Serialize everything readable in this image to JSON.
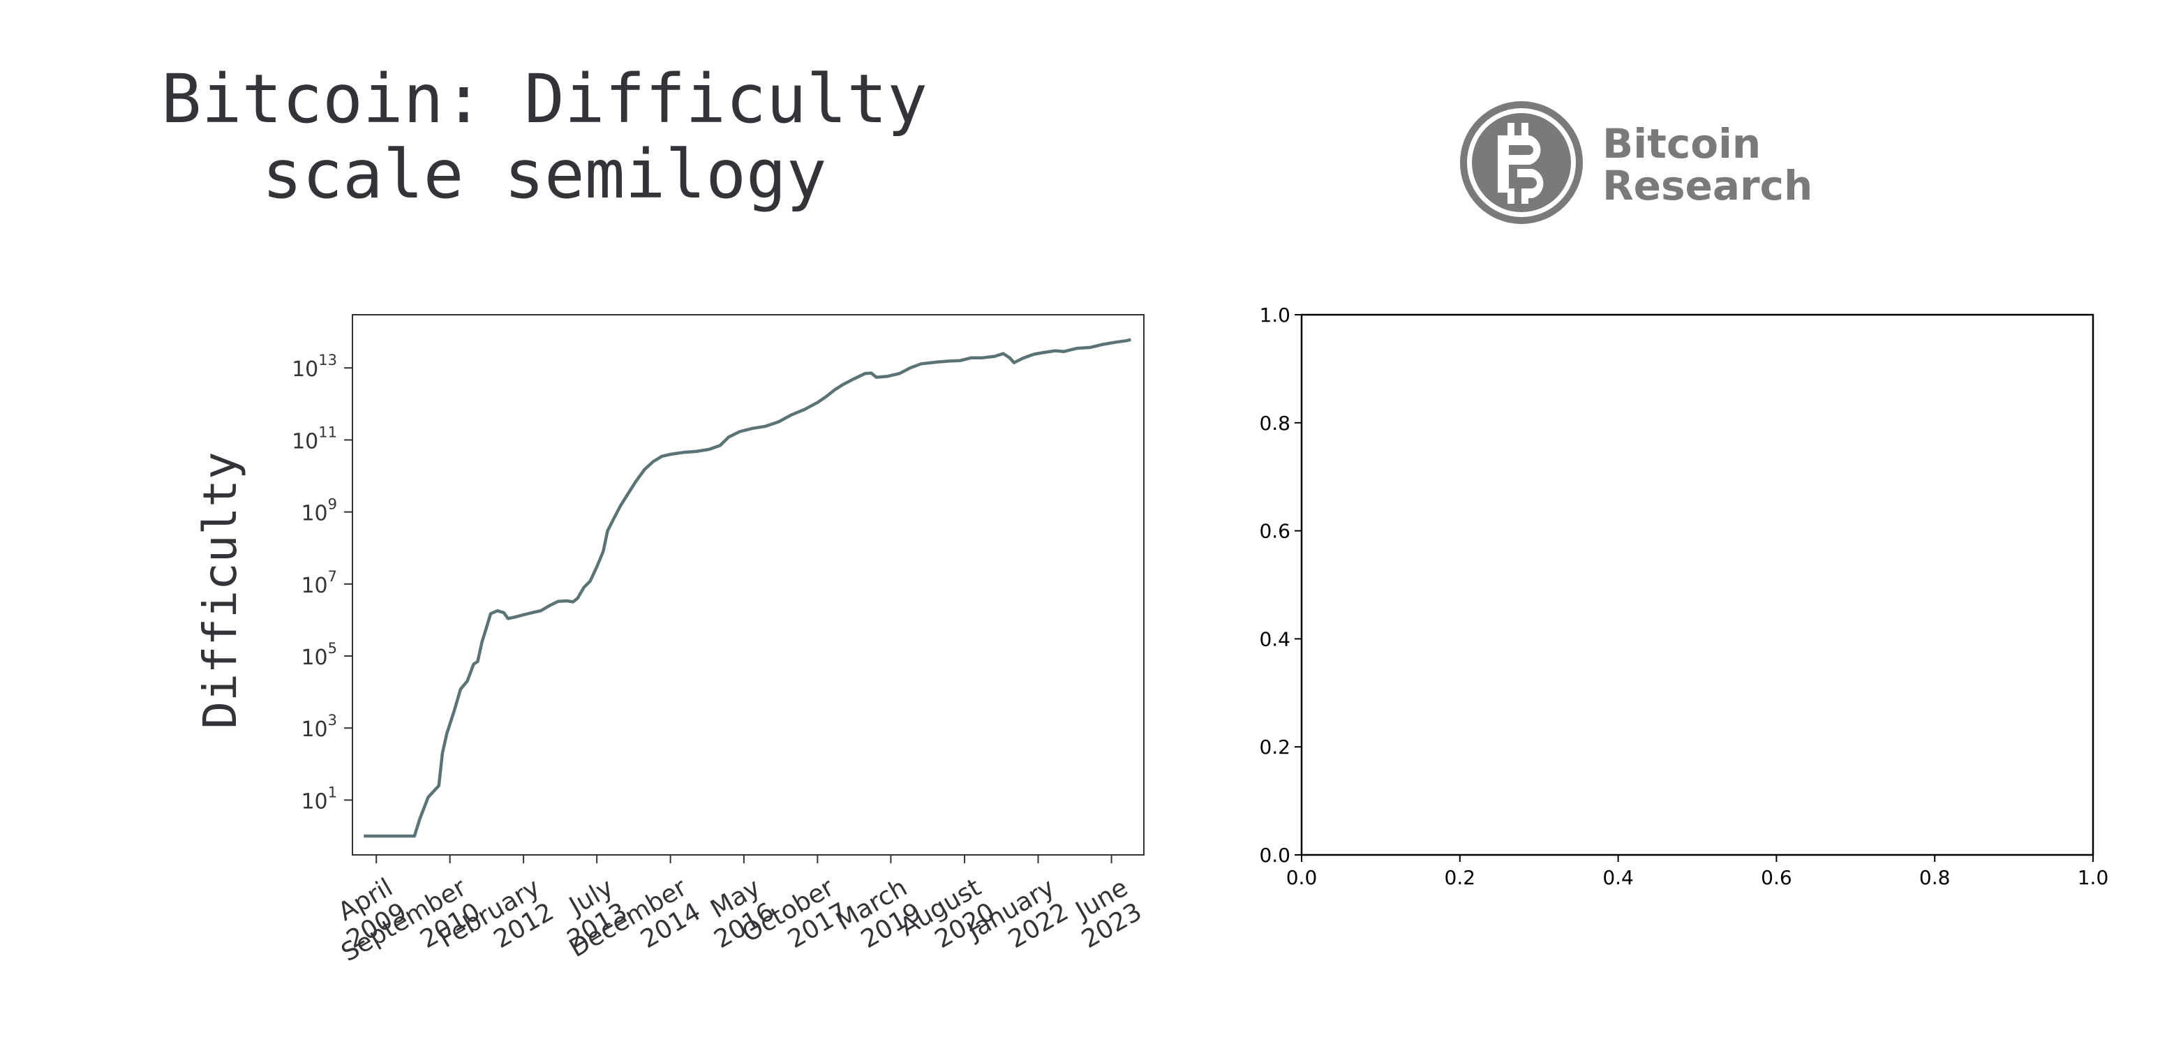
{
  "title": "Bitcoin: Difficulty\nscale semilogy",
  "logo": {
    "line1": "Bitcoin",
    "line2": "Research",
    "icon": "bitcoin-research-logo-icon",
    "color": "#7a7a7a"
  },
  "chart_data": [
    {
      "type": "line",
      "ylabel": "Difficulty",
      "xlabel": "",
      "y_scale": "log",
      "ylim": [
        0.3,
        300000000000000
      ],
      "xlim": [
        "2008-10-15",
        "2024-01-15"
      ],
      "grid": false,
      "y_ticks": [
        {
          "value": 10,
          "base": "10",
          "exp": "1"
        },
        {
          "value": 1000,
          "base": "10",
          "exp": "3"
        },
        {
          "value": 100000,
          "base": "10",
          "exp": "5"
        },
        {
          "value": 10000000,
          "base": "10",
          "exp": "7"
        },
        {
          "value": 1000000000,
          "base": "10",
          "exp": "9"
        },
        {
          "value": 100000000000,
          "base": "10",
          "exp": "11"
        },
        {
          "value": 10000000000000,
          "base": "10",
          "exp": "13"
        }
      ],
      "x_ticks": [
        {
          "date": "2009-04-01",
          "lines": [
            "April",
            "2009"
          ]
        },
        {
          "date": "2010-09-01",
          "lines": [
            "September",
            "2010"
          ]
        },
        {
          "date": "2012-02-01",
          "lines": [
            "February",
            "2012"
          ]
        },
        {
          "date": "2013-07-01",
          "lines": [
            "July",
            "2013"
          ]
        },
        {
          "date": "2014-12-01",
          "lines": [
            "December",
            "2014"
          ]
        },
        {
          "date": "2016-05-01",
          "lines": [
            "May",
            "2016"
          ]
        },
        {
          "date": "2017-10-01",
          "lines": [
            "October",
            "2017"
          ]
        },
        {
          "date": "2019-03-01",
          "lines": [
            "March",
            "2019"
          ]
        },
        {
          "date": "2020-08-01",
          "lines": [
            "August",
            "2020"
          ]
        },
        {
          "date": "2022-01-01",
          "lines": [
            "January",
            "2022"
          ]
        },
        {
          "date": "2023-06-01",
          "lines": [
            "June",
            "2023"
          ]
        }
      ],
      "series": [
        {
          "color": "#5b7375",
          "points": [
            [
              "2009-01-03",
              1
            ],
            [
              "2009-12-25",
              1
            ],
            [
              "2010-02-01",
              3
            ],
            [
              "2010-04-01",
              12
            ],
            [
              "2010-06-15",
              25
            ],
            [
              "2010-07-10",
              200
            ],
            [
              "2010-08-10",
              700
            ],
            [
              "2010-10-01",
              3000
            ],
            [
              "2010-11-15",
              12000
            ],
            [
              "2011-01-01",
              20000
            ],
            [
              "2011-02-15",
              60000
            ],
            [
              "2011-03-15",
              70000
            ],
            [
              "2011-04-15",
              250000
            ],
            [
              "2011-05-15",
              600000
            ],
            [
              "2011-06-15",
              1500000
            ],
            [
              "2011-08-01",
              1800000
            ],
            [
              "2011-09-15",
              1600000
            ],
            [
              "2011-10-15",
              1100000
            ],
            [
              "2011-12-01",
              1200000
            ],
            [
              "2012-02-01",
              1400000
            ],
            [
              "2012-04-01",
              1600000
            ],
            [
              "2012-06-01",
              1800000
            ],
            [
              "2012-08-01",
              2500000
            ],
            [
              "2012-10-01",
              3300000
            ],
            [
              "2012-12-01",
              3400000
            ],
            [
              "2013-01-15",
              3200000
            ],
            [
              "2013-02-15",
              4000000
            ],
            [
              "2013-04-01",
              8000000
            ],
            [
              "2013-05-15",
              12000000
            ],
            [
              "2013-07-01",
              30000000
            ],
            [
              "2013-08-15",
              80000000
            ],
            [
              "2013-09-15",
              300000000
            ],
            [
              "2013-11-01",
              700000000
            ],
            [
              "2013-12-15",
              1500000000
            ],
            [
              "2014-02-01",
              3000000000
            ],
            [
              "2014-04-01",
              7000000000
            ],
            [
              "2014-06-01",
              15000000000
            ],
            [
              "2014-08-01",
              25000000000
            ],
            [
              "2014-10-01",
              35000000000
            ],
            [
              "2014-12-01",
              40000000000
            ],
            [
              "2015-03-01",
              45000000000
            ],
            [
              "2015-06-01",
              48000000000
            ],
            [
              "2015-09-01",
              55000000000
            ],
            [
              "2015-11-15",
              70000000000
            ],
            [
              "2016-01-15",
              120000000000
            ],
            [
              "2016-04-01",
              170000000000
            ],
            [
              "2016-07-01",
              210000000000
            ],
            [
              "2016-10-01",
              240000000000
            ],
            [
              "2017-01-01",
              320000000000
            ],
            [
              "2017-04-01",
              500000000000
            ],
            [
              "2017-07-01",
              700000000000
            ],
            [
              "2017-10-01",
              1100000000000
            ],
            [
              "2017-12-01",
              1600000000000
            ],
            [
              "2018-02-01",
              2500000000000
            ],
            [
              "2018-04-01",
              3500000000000
            ],
            [
              "2018-06-15",
              5000000000000
            ],
            [
              "2018-09-01",
              7000000000000
            ],
            [
              "2018-10-15",
              7200000000000
            ],
            [
              "2018-11-20",
              5500000000000
            ],
            [
              "2019-02-01",
              5800000000000
            ],
            [
              "2019-05-01",
              7000000000000
            ],
            [
              "2019-07-15",
              10000000000000
            ],
            [
              "2019-10-01",
              13000000000000
            ],
            [
              "2020-01-15",
              14500000000000
            ],
            [
              "2020-04-15",
              15500000000000
            ],
            [
              "2020-07-01",
              16000000000000
            ],
            [
              "2020-09-15",
              19000000000000
            ],
            [
              "2020-12-01",
              19000000000000
            ],
            [
              "2021-03-01",
              21000000000000
            ],
            [
              "2021-05-01",
              25000000000000
            ],
            [
              "2021-06-15",
              19000000000000
            ],
            [
              "2021-07-15",
              14000000000000
            ],
            [
              "2021-09-15",
              18500000000000
            ],
            [
              "2021-12-01",
              24000000000000
            ],
            [
              "2022-02-01",
              26500000000000
            ],
            [
              "2022-05-01",
              30000000000000
            ],
            [
              "2022-07-01",
              28500000000000
            ],
            [
              "2022-10-01",
              35000000000000
            ],
            [
              "2023-01-01",
              37000000000000
            ],
            [
              "2023-04-01",
              45000000000000
            ],
            [
              "2023-07-01",
              52000000000000
            ],
            [
              "2023-09-15",
              57000000000000
            ],
            [
              "2023-10-15",
              61000000000000
            ]
          ]
        }
      ]
    },
    {
      "type": "line",
      "xlim": [
        0.0,
        1.0
      ],
      "ylim": [
        0.0,
        1.0
      ],
      "grid": false,
      "x_ticks": [
        "0.0",
        "0.2",
        "0.4",
        "0.6",
        "0.8",
        "1.0"
      ],
      "y_ticks": [
        "0.0",
        "0.2",
        "0.4",
        "0.6",
        "0.8",
        "1.0"
      ],
      "series": []
    }
  ]
}
